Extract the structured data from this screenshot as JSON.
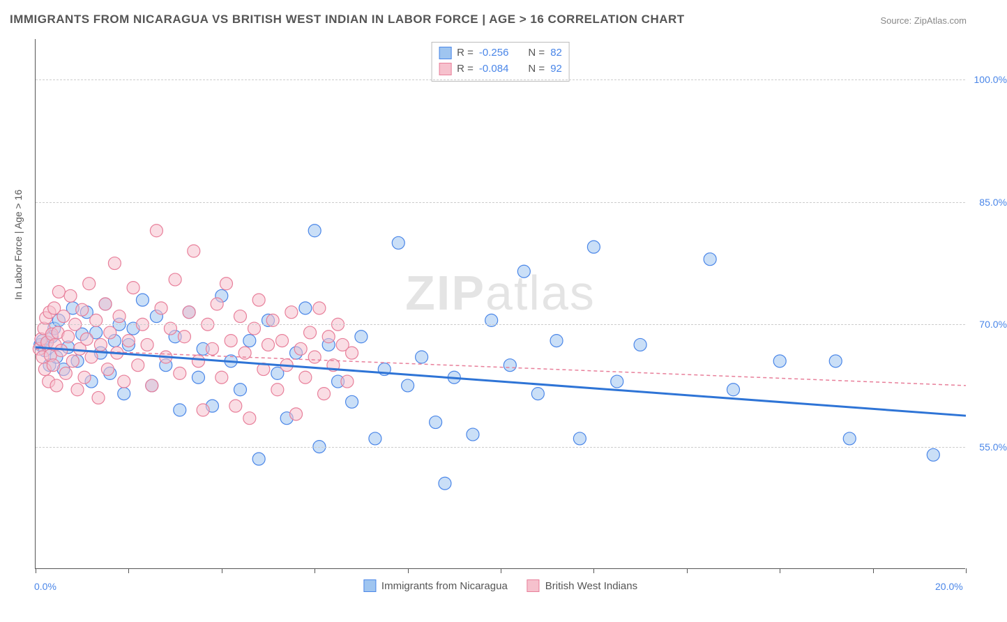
{
  "title": "IMMIGRANTS FROM NICARAGUA VS BRITISH WEST INDIAN IN LABOR FORCE | AGE > 16 CORRELATION CHART",
  "source": "Source: ZipAtlas.com",
  "ylabel": "In Labor Force | Age > 16",
  "watermark": {
    "bold": "ZIP",
    "rest": "atlas"
  },
  "chart": {
    "type": "scatter",
    "xlim": [
      0,
      20
    ],
    "ylim": [
      40,
      105
    ],
    "xtick_positions": [
      0,
      2,
      4,
      6,
      8,
      10,
      12,
      14,
      16,
      18,
      20
    ],
    "xtick_labels": {
      "0": "0.0%",
      "20": "20.0%"
    },
    "ytick_positions": [
      55,
      70,
      85,
      100
    ],
    "ytick_labels": [
      "55.0%",
      "70.0%",
      "85.0%",
      "100.0%"
    ],
    "grid_color": "#cccccc",
    "axis_color": "#555555",
    "background_color": "#ffffff",
    "marker_radius": 9,
    "marker_opacity": 0.55,
    "series": [
      {
        "name": "Immigrants from Nicaragua",
        "fill": "#9fc5f0",
        "stroke": "#4a86e8",
        "R": "-0.256",
        "N": "82",
        "trend": {
          "color": "#2e74d6",
          "width": 3,
          "dash": "none",
          "y_at_xmin": 67.2,
          "y_at_xmax": 58.8
        },
        "points": [
          [
            0.1,
            67.5
          ],
          [
            0.15,
            68.0
          ],
          [
            0.2,
            66.8
          ],
          [
            0.25,
            67.8
          ],
          [
            0.3,
            65.0
          ],
          [
            0.35,
            68.5
          ],
          [
            0.4,
            69.5
          ],
          [
            0.45,
            66.0
          ],
          [
            0.5,
            70.5
          ],
          [
            0.6,
            64.5
          ],
          [
            0.7,
            67.2
          ],
          [
            0.8,
            72.0
          ],
          [
            0.9,
            65.5
          ],
          [
            1.0,
            68.8
          ],
          [
            1.1,
            71.5
          ],
          [
            1.2,
            63.0
          ],
          [
            1.3,
            69.0
          ],
          [
            1.4,
            66.5
          ],
          [
            1.5,
            72.5
          ],
          [
            1.6,
            64.0
          ],
          [
            1.7,
            68.0
          ],
          [
            1.8,
            70.0
          ],
          [
            1.9,
            61.5
          ],
          [
            2.0,
            67.5
          ],
          [
            2.1,
            69.5
          ],
          [
            2.3,
            73.0
          ],
          [
            2.5,
            62.5
          ],
          [
            2.6,
            71.0
          ],
          [
            2.8,
            65.0
          ],
          [
            3.0,
            68.5
          ],
          [
            3.1,
            59.5
          ],
          [
            3.3,
            71.5
          ],
          [
            3.5,
            63.5
          ],
          [
            3.6,
            67.0
          ],
          [
            3.8,
            60.0
          ],
          [
            4.0,
            73.5
          ],
          [
            4.2,
            65.5
          ],
          [
            4.4,
            62.0
          ],
          [
            4.6,
            68.0
          ],
          [
            4.8,
            53.5
          ],
          [
            5.0,
            70.5
          ],
          [
            5.2,
            64.0
          ],
          [
            5.4,
            58.5
          ],
          [
            5.6,
            66.5
          ],
          [
            5.8,
            72.0
          ],
          [
            6.0,
            81.5
          ],
          [
            6.1,
            55.0
          ],
          [
            6.3,
            67.5
          ],
          [
            6.5,
            63.0
          ],
          [
            6.8,
            60.5
          ],
          [
            7.0,
            68.5
          ],
          [
            7.3,
            56.0
          ],
          [
            7.5,
            64.5
          ],
          [
            7.8,
            80.0
          ],
          [
            8.0,
            62.5
          ],
          [
            8.3,
            66.0
          ],
          [
            8.6,
            58.0
          ],
          [
            8.8,
            50.5
          ],
          [
            9.0,
            63.5
          ],
          [
            9.4,
            56.5
          ],
          [
            9.8,
            70.5
          ],
          [
            10.2,
            65.0
          ],
          [
            10.5,
            76.5
          ],
          [
            10.8,
            61.5
          ],
          [
            11.2,
            68.0
          ],
          [
            11.7,
            56.0
          ],
          [
            12.0,
            79.5
          ],
          [
            12.5,
            63.0
          ],
          [
            13.0,
            67.5
          ],
          [
            14.5,
            78.0
          ],
          [
            15.0,
            62.0
          ],
          [
            16.0,
            65.5
          ],
          [
            17.2,
            65.5
          ],
          [
            17.5,
            56.0
          ],
          [
            19.3,
            54.0
          ]
        ]
      },
      {
        "name": "British West Indians",
        "fill": "#f6c1cd",
        "stroke": "#e87f9a",
        "R": "-0.084",
        "N": "92",
        "trend": {
          "color": "#e87f9a",
          "width": 1.5,
          "dash": "5,4",
          "y_at_xmin": 67.0,
          "y_at_xmax": 62.5
        },
        "points": [
          [
            0.08,
            67.0
          ],
          [
            0.12,
            68.2
          ],
          [
            0.15,
            66.0
          ],
          [
            0.18,
            69.5
          ],
          [
            0.2,
            64.5
          ],
          [
            0.22,
            70.8
          ],
          [
            0.25,
            67.8
          ],
          [
            0.28,
            63.0
          ],
          [
            0.3,
            71.5
          ],
          [
            0.32,
            66.2
          ],
          [
            0.35,
            68.8
          ],
          [
            0.38,
            65.0
          ],
          [
            0.4,
            72.0
          ],
          [
            0.42,
            67.5
          ],
          [
            0.45,
            62.5
          ],
          [
            0.48,
            69.0
          ],
          [
            0.5,
            74.0
          ],
          [
            0.55,
            66.8
          ],
          [
            0.6,
            71.0
          ],
          [
            0.65,
            64.0
          ],
          [
            0.7,
            68.5
          ],
          [
            0.75,
            73.5
          ],
          [
            0.8,
            65.5
          ],
          [
            0.85,
            70.0
          ],
          [
            0.9,
            62.0
          ],
          [
            0.95,
            67.0
          ],
          [
            1.0,
            71.8
          ],
          [
            1.05,
            63.5
          ],
          [
            1.1,
            68.2
          ],
          [
            1.15,
            75.0
          ],
          [
            1.2,
            66.0
          ],
          [
            1.3,
            70.5
          ],
          [
            1.35,
            61.0
          ],
          [
            1.4,
            67.5
          ],
          [
            1.5,
            72.5
          ],
          [
            1.55,
            64.5
          ],
          [
            1.6,
            69.0
          ],
          [
            1.7,
            77.5
          ],
          [
            1.75,
            66.5
          ],
          [
            1.8,
            71.0
          ],
          [
            1.9,
            63.0
          ],
          [
            2.0,
            68.0
          ],
          [
            2.1,
            74.5
          ],
          [
            2.2,
            65.0
          ],
          [
            2.3,
            70.0
          ],
          [
            2.4,
            67.5
          ],
          [
            2.5,
            62.5
          ],
          [
            2.6,
            81.5
          ],
          [
            2.7,
            72.0
          ],
          [
            2.8,
            66.0
          ],
          [
            2.9,
            69.5
          ],
          [
            3.0,
            75.5
          ],
          [
            3.1,
            64.0
          ],
          [
            3.2,
            68.5
          ],
          [
            3.3,
            71.5
          ],
          [
            3.4,
            79.0
          ],
          [
            3.5,
            65.5
          ],
          [
            3.6,
            59.5
          ],
          [
            3.7,
            70.0
          ],
          [
            3.8,
            67.0
          ],
          [
            3.9,
            72.5
          ],
          [
            4.0,
            63.5
          ],
          [
            4.1,
            75.0
          ],
          [
            4.2,
            68.0
          ],
          [
            4.3,
            60.0
          ],
          [
            4.4,
            71.0
          ],
          [
            4.5,
            66.5
          ],
          [
            4.6,
            58.5
          ],
          [
            4.7,
            69.5
          ],
          [
            4.8,
            73.0
          ],
          [
            4.9,
            64.5
          ],
          [
            5.0,
            67.5
          ],
          [
            5.1,
            70.5
          ],
          [
            5.2,
            62.0
          ],
          [
            5.3,
            68.0
          ],
          [
            5.4,
            65.0
          ],
          [
            5.5,
            71.5
          ],
          [
            5.6,
            59.0
          ],
          [
            5.7,
            67.0
          ],
          [
            5.8,
            63.5
          ],
          [
            5.9,
            69.0
          ],
          [
            6.0,
            66.0
          ],
          [
            6.1,
            72.0
          ],
          [
            6.2,
            61.5
          ],
          [
            6.3,
            68.5
          ],
          [
            6.4,
            65.0
          ],
          [
            6.5,
            70.0
          ],
          [
            6.6,
            67.5
          ],
          [
            6.7,
            63.0
          ],
          [
            6.8,
            66.5
          ]
        ]
      }
    ]
  },
  "bottom_legend": [
    {
      "label": "Immigrants from Nicaragua",
      "fill": "#9fc5f0",
      "stroke": "#4a86e8"
    },
    {
      "label": "British West Indians",
      "fill": "#f6c1cd",
      "stroke": "#e87f9a"
    }
  ]
}
